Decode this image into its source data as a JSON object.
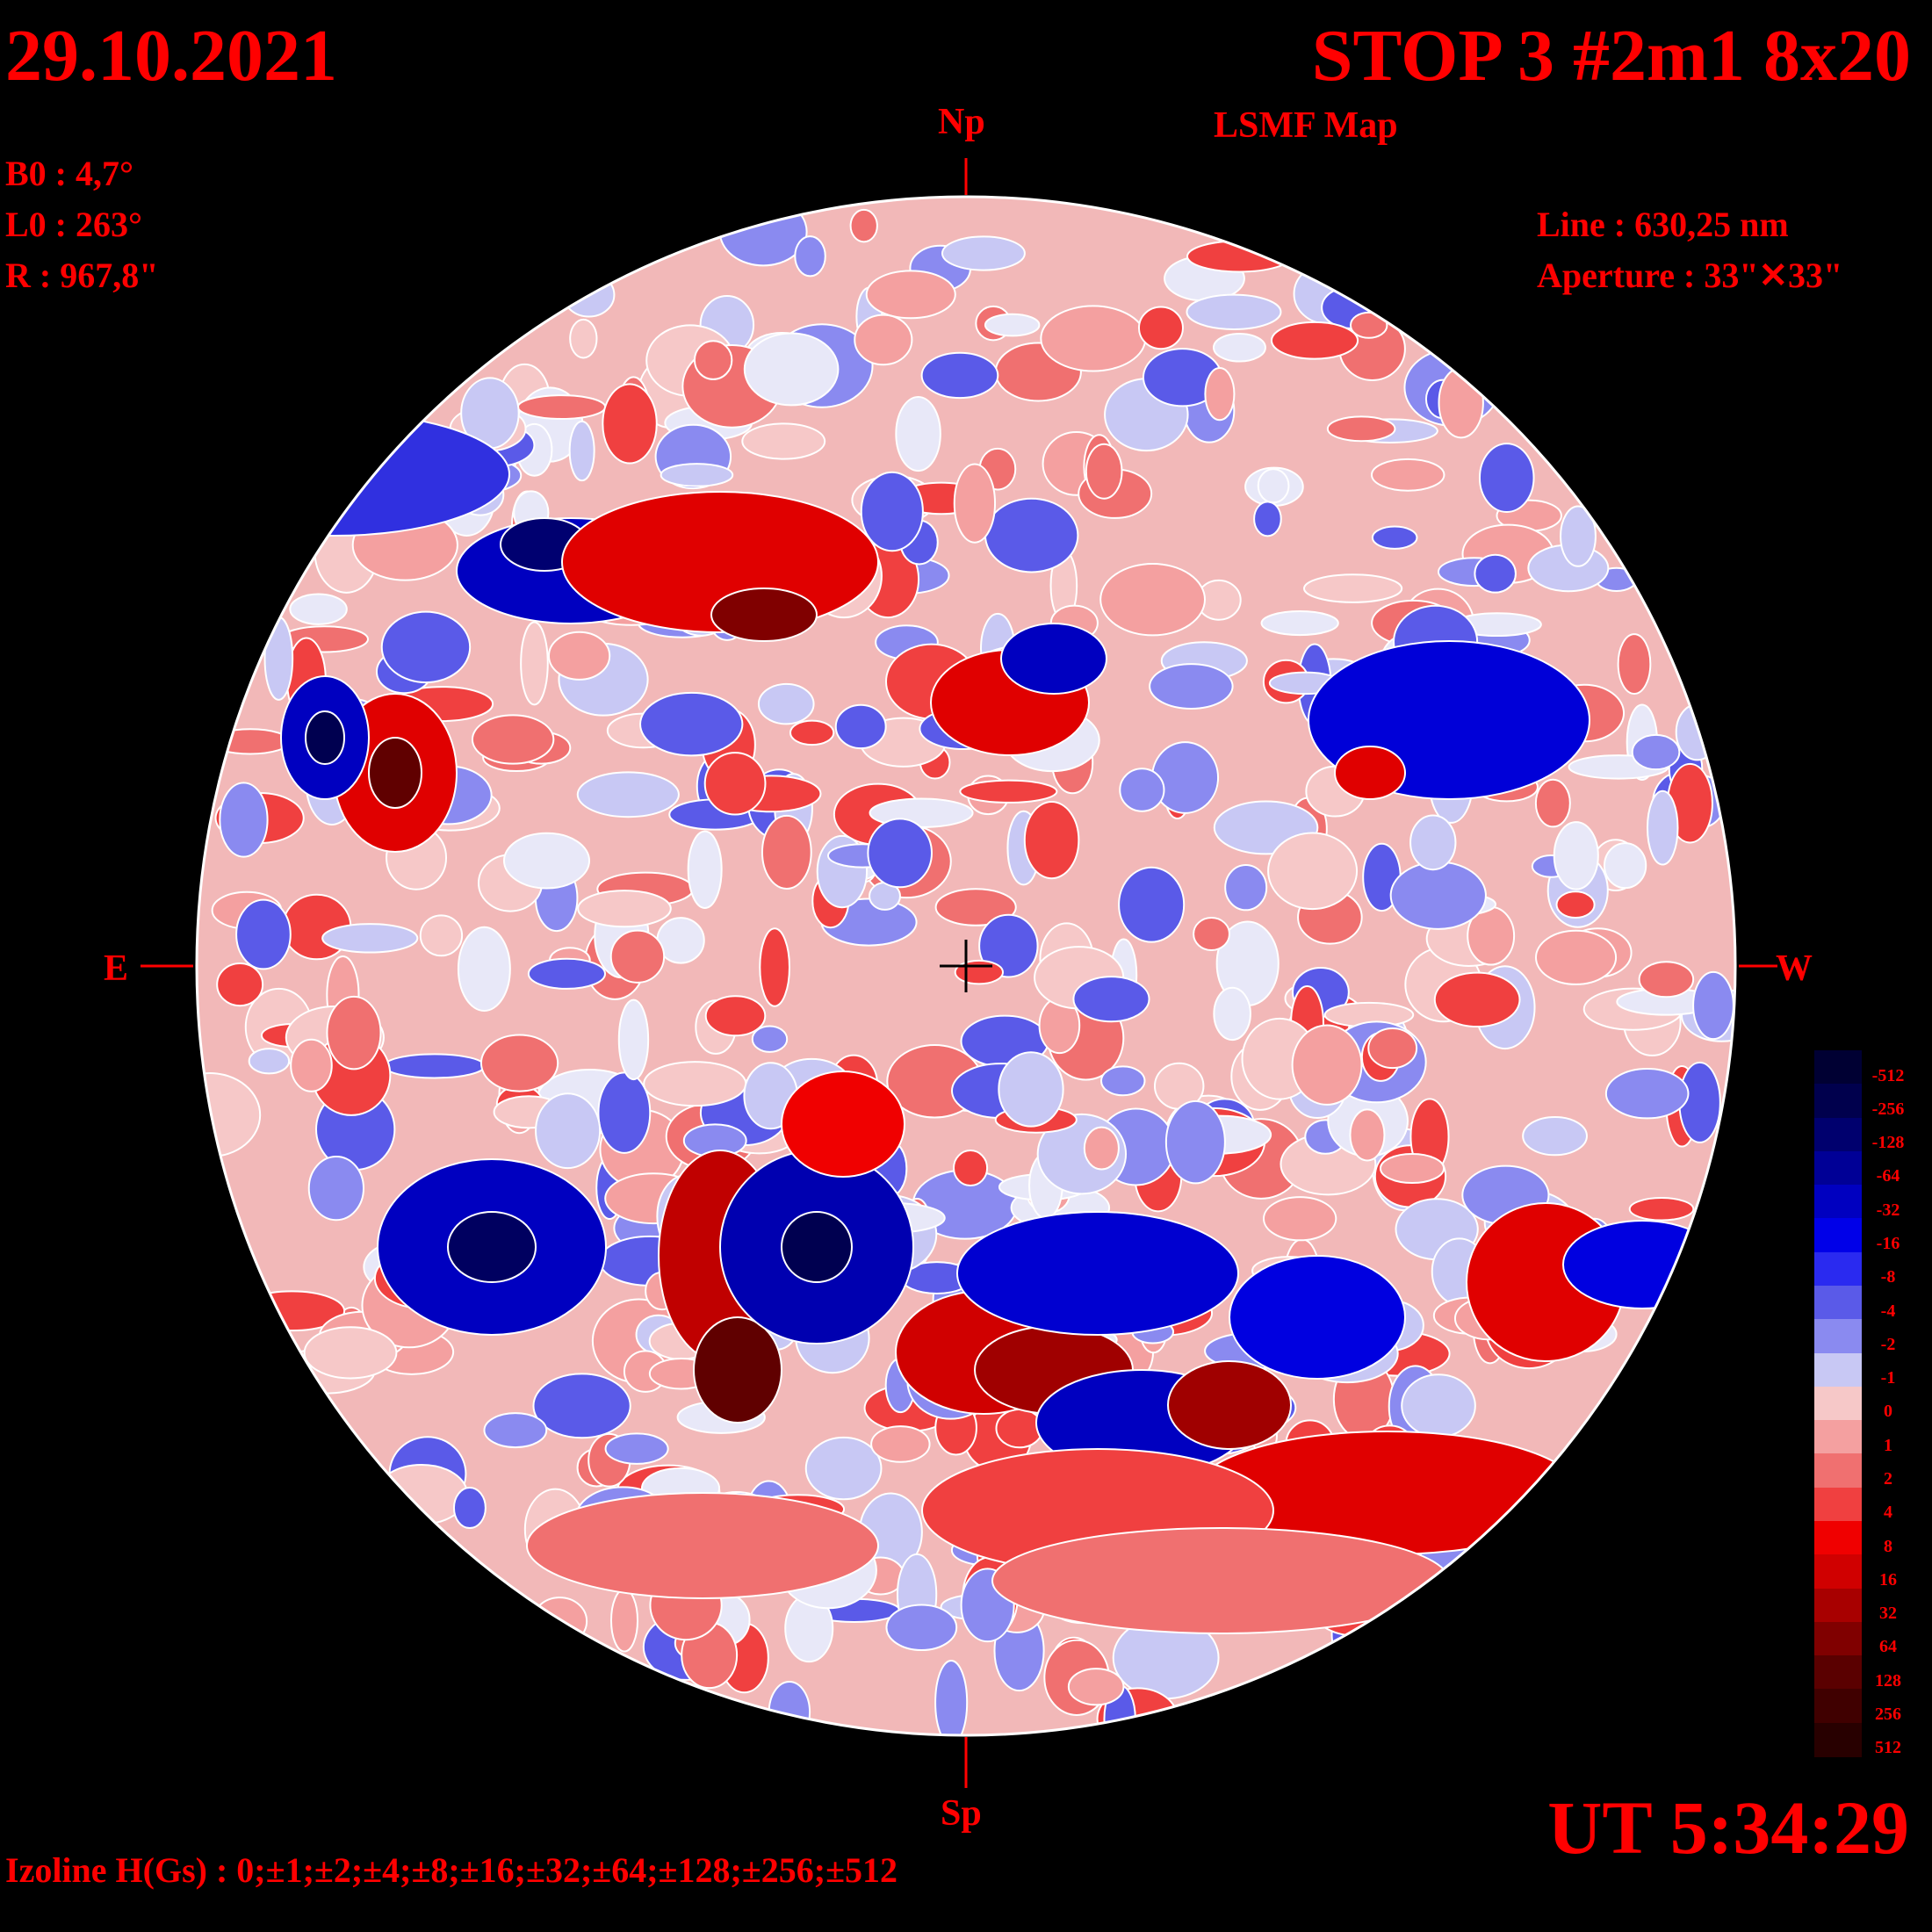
{
  "header": {
    "date": "29.10.2021",
    "title": "STOP 3 #2m1 8x20",
    "subtitle": "LSMF  Map"
  },
  "params_left": {
    "b0": "B0 : 4,7°",
    "l0": "L0 : 263°",
    "r": "R  : 967,8\""
  },
  "params_right": {
    "line": "Line :  630,25 nm",
    "aperture": "Aperture : 33\"✕33\""
  },
  "compass": {
    "north": "Np",
    "south": "Sp",
    "east": "E",
    "west": "W"
  },
  "time": "UT 5:34:29",
  "izoline": "Izoline H(Gs) : 0;±1;±2;±4;±8;±16;±32;±64;±128;±256;±512",
  "colors": {
    "background": "#000000",
    "text": "#ff0000",
    "contour": "#ffffff"
  },
  "colorbar": {
    "levels": [
      {
        "label": "-512",
        "color": "#000033"
      },
      {
        "label": "-256",
        "color": "#00004d"
      },
      {
        "label": "-128",
        "color": "#00006e"
      },
      {
        "label": "-64",
        "color": "#000096"
      },
      {
        "label": "-32",
        "color": "#0000c0"
      },
      {
        "label": "-16",
        "color": "#0000e8"
      },
      {
        "label": "-8",
        "color": "#2a2af0"
      },
      {
        "label": "-4",
        "color": "#5a5ae8"
      },
      {
        "label": "-2",
        "color": "#8a8af0"
      },
      {
        "label": "-1",
        "color": "#c8c8f4"
      },
      {
        "label": "0",
        "color": "#f6c8c8"
      },
      {
        "label": "1",
        "color": "#f4a0a0"
      },
      {
        "label": "2",
        "color": "#f07070"
      },
      {
        "label": "4",
        "color": "#f04040"
      },
      {
        "label": "8",
        "color": "#f00000"
      },
      {
        "label": "16",
        "color": "#d00000"
      },
      {
        "label": "32",
        "color": "#a80000"
      },
      {
        "label": "64",
        "color": "#800000"
      },
      {
        "label": "128",
        "color": "#5a0000"
      },
      {
        "label": "256",
        "color": "#400000"
      },
      {
        "label": "512",
        "color": "#280000"
      }
    ]
  }
}
